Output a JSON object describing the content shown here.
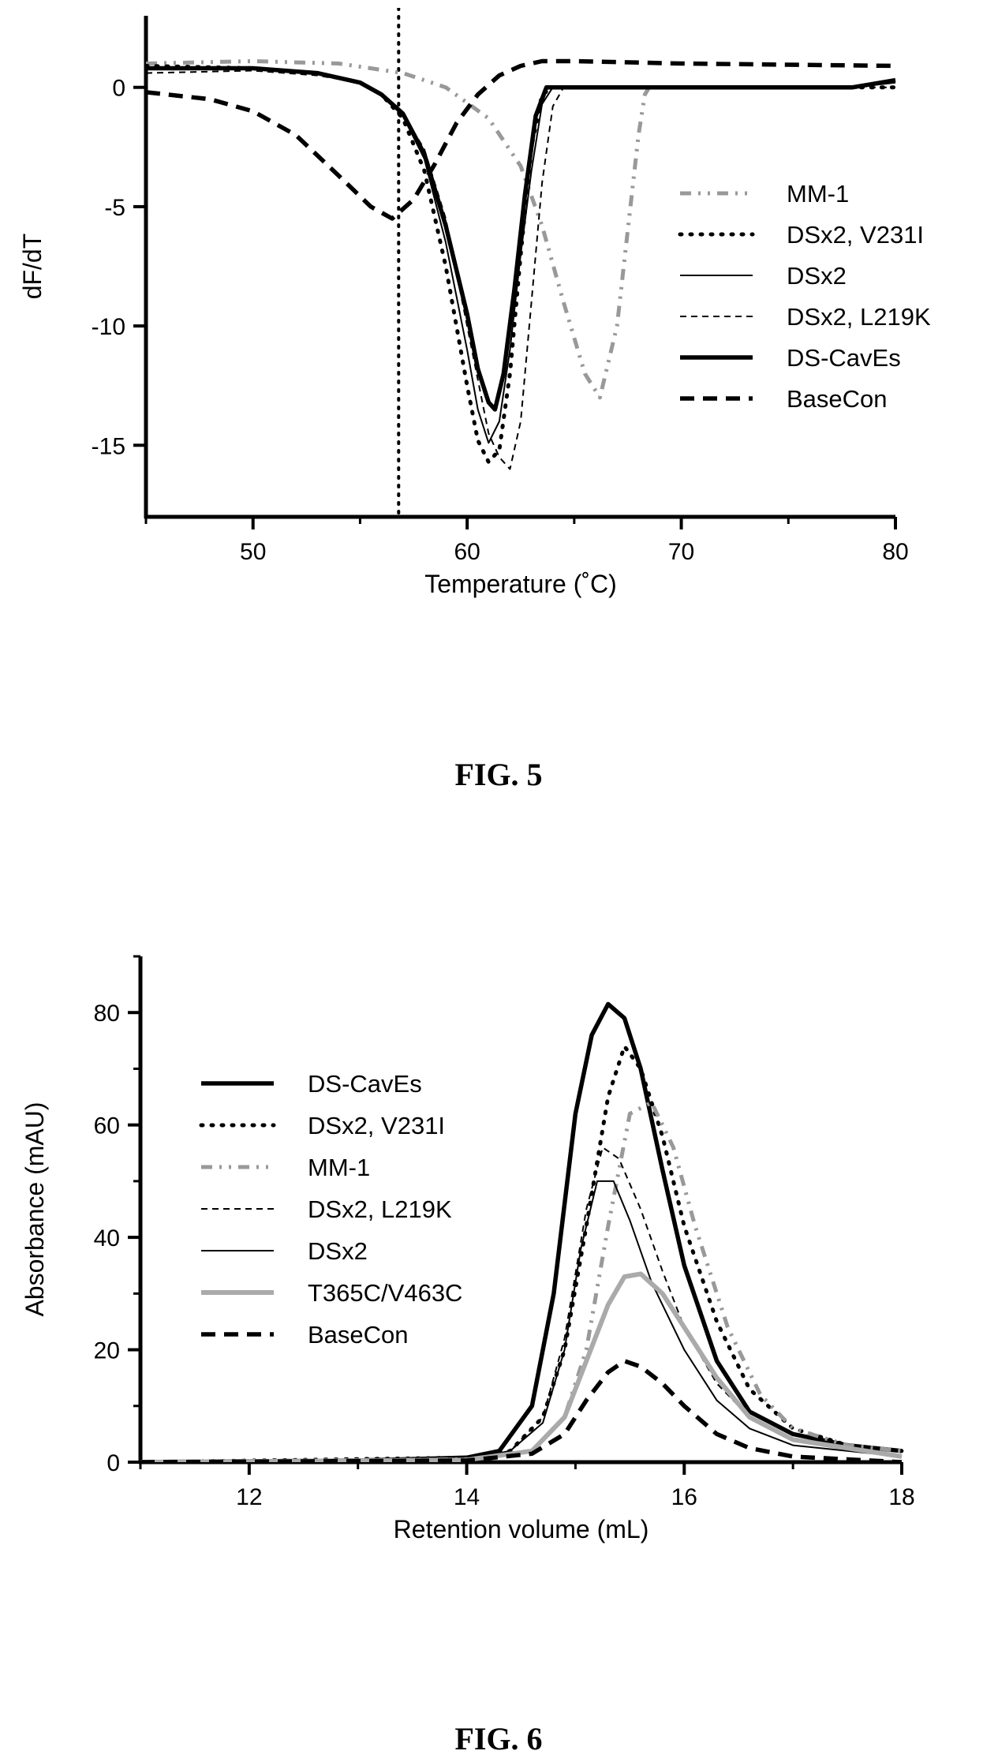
{
  "figures": [
    {
      "label": "FIG. 5"
    },
    {
      "label": "FIG. 6"
    }
  ],
  "chart_data": [
    {
      "type": "line",
      "xlabel": "Temperature (˚C)",
      "ylabel": "dF/dT",
      "xlim": [
        45,
        80
      ],
      "ylim": [
        -18,
        3
      ],
      "xticks": [
        "50",
        "60",
        "70",
        "80"
      ],
      "yticks": [
        "0",
        "-5",
        "-10",
        "-15"
      ],
      "xtick_values": [
        50,
        60,
        70,
        80
      ],
      "ytick_values": [
        0,
        -5,
        -10,
        -15
      ],
      "legend_position": "right",
      "vline_x": 56.8,
      "series": [
        {
          "name": "MM-1",
          "style": "dashdot-gray",
          "x": [
            45,
            50,
            54,
            57,
            59,
            61,
            62.5,
            63.5,
            64.5,
            65.5,
            66.2,
            67,
            67.5,
            68,
            68.3,
            68.7
          ],
          "y": [
            1,
            1.1,
            1,
            0.6,
            0,
            -1.3,
            -3.3,
            -5.8,
            -9,
            -12,
            -13,
            -10,
            -6,
            -2,
            -0.3,
            0.3
          ]
        },
        {
          "name": "DSx2, V231I",
          "style": "dotted",
          "x": [
            45,
            50,
            53,
            55,
            56,
            57,
            58,
            59,
            60,
            60.5,
            61,
            61.5,
            62,
            62.5,
            63,
            63.5,
            64,
            65,
            80
          ],
          "y": [
            0.9,
            0.8,
            0.6,
            0.2,
            -0.3,
            -1.3,
            -3.5,
            -7.5,
            -12.5,
            -14.8,
            -15.7,
            -15.2,
            -12,
            -7,
            -2.5,
            -0.3,
            0,
            0,
            0
          ]
        },
        {
          "name": "DSx2",
          "style": "thin-solid",
          "x": [
            45,
            50,
            53,
            55,
            56,
            57,
            58,
            59,
            60,
            60.5,
            61,
            61.5,
            62,
            62.5,
            63,
            63.5,
            64,
            65,
            78,
            80
          ],
          "y": [
            0.8,
            0.8,
            0.6,
            0.2,
            -0.3,
            -1.2,
            -3,
            -6.5,
            -11,
            -13.5,
            -14.9,
            -14,
            -11,
            -7,
            -3.5,
            -0.7,
            0,
            0,
            0,
            0.2
          ]
        },
        {
          "name": "DSx2, L219K",
          "style": "thin-dash",
          "x": [
            45,
            50,
            53,
            55,
            56,
            57,
            58,
            59,
            60,
            61,
            61.5,
            62,
            62.5,
            63,
            63.5,
            64,
            64.5,
            65,
            80
          ],
          "y": [
            0.6,
            0.7,
            0.5,
            0.2,
            -0.3,
            -1.1,
            -2.6,
            -5.5,
            -10,
            -14.5,
            -15.5,
            -16,
            -14,
            -9,
            -4,
            -0.8,
            0,
            0,
            0
          ]
        },
        {
          "name": "DS-CavEs",
          "style": "thick-solid",
          "x": [
            45,
            50,
            53,
            55,
            56,
            57,
            58,
            59,
            60,
            60.5,
            61,
            61.3,
            61.7,
            62.2,
            62.7,
            63.2,
            63.7,
            64.5,
            78,
            80
          ],
          "y": [
            0.8,
            0.8,
            0.6,
            0.2,
            -0.3,
            -1.1,
            -2.8,
            -5.8,
            -9.5,
            -11.8,
            -13.2,
            -13.5,
            -12,
            -8.5,
            -4.5,
            -1.2,
            0,
            0,
            0,
            0.3
          ]
        },
        {
          "name": "BaseCon",
          "style": "thick-dash",
          "x": [
            45,
            48,
            50,
            52,
            54,
            55.5,
            56.5,
            57.5,
            58.5,
            59.5,
            60.5,
            61.5,
            62.5,
            63.5,
            65,
            70,
            80
          ],
          "y": [
            -0.2,
            -0.5,
            -1,
            -2,
            -3.7,
            -5,
            -5.5,
            -4.7,
            -3.2,
            -1.5,
            -0.3,
            0.5,
            0.9,
            1.1,
            1.1,
            1,
            0.9
          ]
        }
      ]
    },
    {
      "type": "line",
      "xlabel": "Retention  volume (mL)",
      "ylabel": "Absorbance (mAU)",
      "xlim": [
        11,
        18
      ],
      "ylim": [
        0,
        90
      ],
      "xticks": [
        "12",
        "14",
        "16",
        "18"
      ],
      "yticks": [
        "0",
        "20",
        "40",
        "60",
        "80"
      ],
      "xtick_values": [
        12,
        14,
        16,
        18
      ],
      "ytick_values": [
        0,
        20,
        40,
        60,
        80
      ],
      "legend_position": "left",
      "series": [
        {
          "name": "DS-CavEs",
          "style": "thick-solid",
          "x": [
            11,
            13,
            14,
            14.3,
            14.6,
            14.8,
            15,
            15.15,
            15.3,
            15.45,
            15.6,
            15.8,
            16,
            16.3,
            16.6,
            17,
            17.5,
            18
          ],
          "y": [
            0,
            0.3,
            0.8,
            2,
            10,
            30,
            62,
            76,
            81.5,
            79,
            70,
            52,
            35,
            18,
            9,
            5,
            3,
            2
          ]
        },
        {
          "name": "DSx2, V231I",
          "style": "dotted",
          "x": [
            11,
            14,
            14.4,
            14.7,
            14.9,
            15.1,
            15.3,
            15.45,
            15.6,
            15.8,
            16,
            16.3,
            16.6,
            17,
            17.5,
            18
          ],
          "y": [
            0,
            0.8,
            2,
            8,
            20,
            42,
            65,
            74,
            70,
            58,
            42,
            25,
            13,
            6,
            3,
            2
          ]
        },
        {
          "name": "MM-1",
          "style": "dashdot-gray",
          "x": [
            11,
            14,
            14.6,
            14.9,
            15.1,
            15.3,
            15.5,
            15.7,
            15.9,
            16.1,
            16.4,
            16.7,
            17,
            17.5,
            18
          ],
          "y": [
            0,
            0.5,
            2,
            8,
            20,
            42,
            62,
            64,
            56,
            42,
            24,
            12,
            6,
            3,
            2
          ]
        },
        {
          "name": "DSx2, L219K",
          "style": "thin-dash",
          "x": [
            11,
            14,
            14.4,
            14.7,
            14.9,
            15.1,
            15.25,
            15.4,
            15.6,
            15.8,
            16,
            16.3,
            16.6,
            17,
            18
          ],
          "y": [
            0,
            0.5,
            2,
            8,
            22,
            45,
            56,
            54,
            45,
            34,
            24,
            14,
            8,
            4,
            1
          ]
        },
        {
          "name": "DSx2",
          "style": "thin-solid",
          "x": [
            11,
            14,
            14.4,
            14.7,
            14.9,
            15.05,
            15.2,
            15.35,
            15.5,
            15.7,
            16,
            16.3,
            16.6,
            17,
            18
          ],
          "y": [
            0,
            0.5,
            2,
            7,
            20,
            38,
            50,
            50,
            43,
            32,
            20,
            11,
            6,
            3,
            1
          ]
        },
        {
          "name": "T365C/V463C",
          "style": "thick-gray",
          "x": [
            11,
            14,
            14.6,
            14.9,
            15.1,
            15.3,
            15.45,
            15.6,
            15.8,
            16,
            16.3,
            16.6,
            17,
            18
          ],
          "y": [
            0,
            0.4,
            2,
            8,
            18,
            28,
            33,
            33.5,
            30,
            24,
            15,
            8,
            4,
            1
          ]
        },
        {
          "name": "BaseCon",
          "style": "thick-dash",
          "x": [
            11,
            14,
            14.6,
            14.9,
            15.1,
            15.3,
            15.45,
            15.6,
            15.8,
            16,
            16.3,
            16.6,
            17,
            18
          ],
          "y": [
            0,
            0.3,
            1.5,
            5,
            11,
            16,
            18,
            17,
            14,
            10,
            5,
            2.5,
            1,
            0
          ]
        }
      ]
    }
  ]
}
